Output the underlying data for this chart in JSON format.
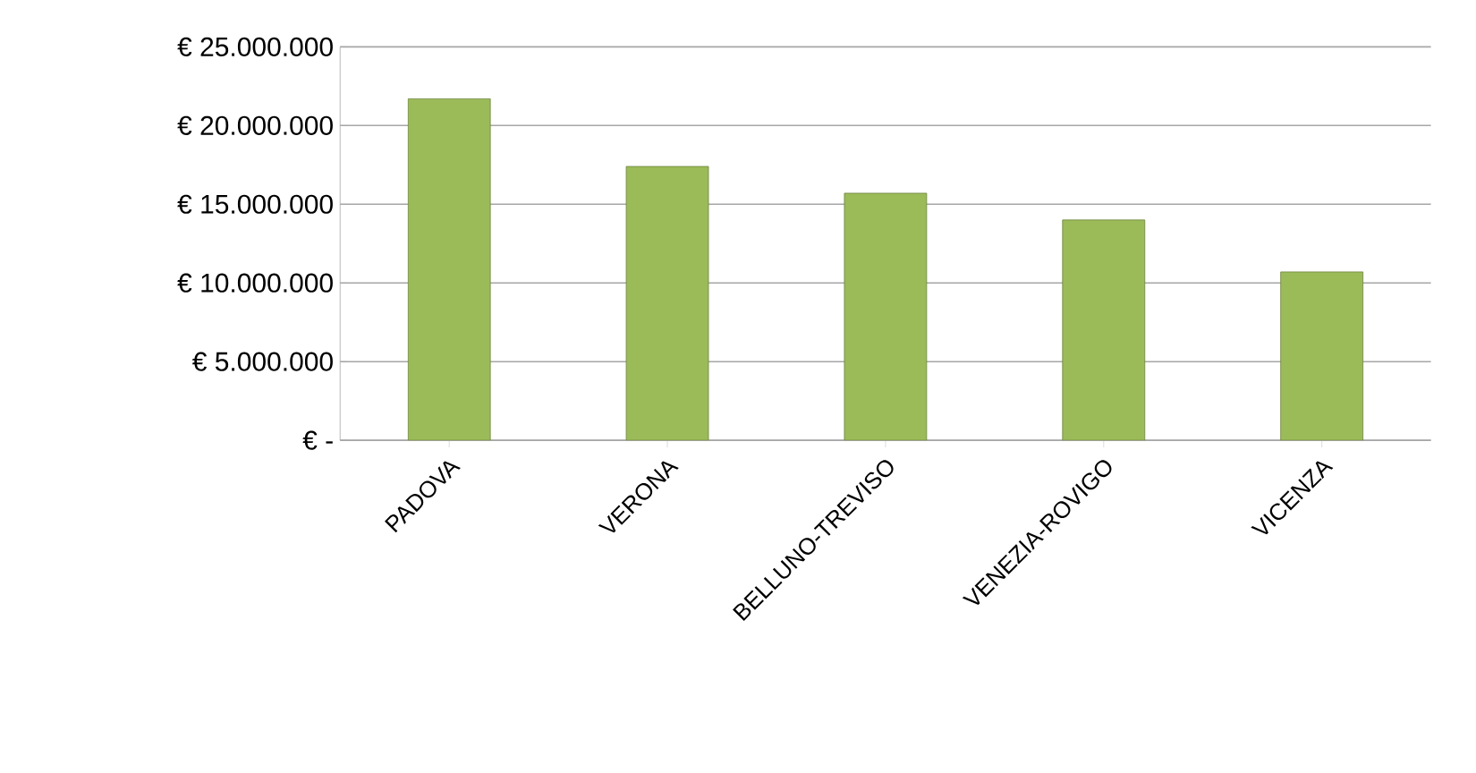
{
  "chart_data": {
    "type": "bar",
    "categories": [
      "PADOVA",
      "VERONA",
      "BELLUNO-TREVISO",
      "VENEZIA-ROVIGO",
      "VICENZA"
    ],
    "values": [
      21700000,
      17400000,
      15700000,
      14000000,
      10700000
    ],
    "color": "#9bbb59",
    "ylim": [
      0,
      25000000
    ],
    "yticks": [
      {
        "value": 0,
        "label": "€ -"
      },
      {
        "value": 5000000,
        "label": "€ 5.000.000"
      },
      {
        "value": 10000000,
        "label": "€ 10.000.000"
      },
      {
        "value": 15000000,
        "label": "€ 15.000.000"
      },
      {
        "value": 20000000,
        "label": "€ 20.000.000"
      },
      {
        "value": 25000000,
        "label": "€ 25.000.000"
      }
    ],
    "grid": "y"
  }
}
